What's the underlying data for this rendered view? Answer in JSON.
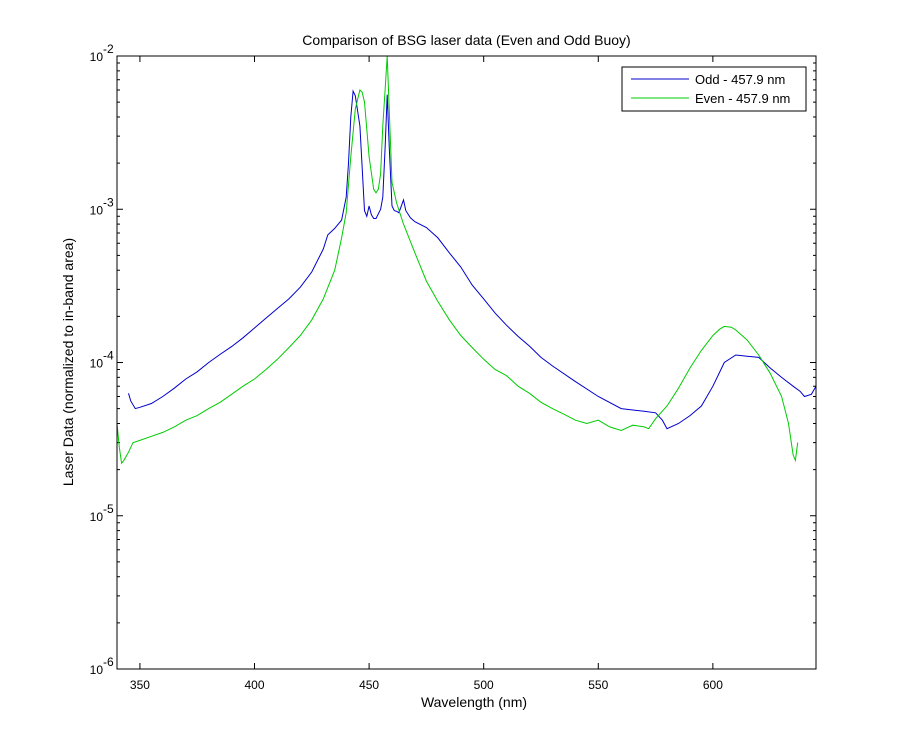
{
  "chart_data": {
    "type": "line",
    "title": "Comparison of BSG laser data (Even and Odd Buoy)",
    "xlabel": "Wavelength (nm)",
    "ylabel": "Laser Data (normalized to in-band area)",
    "xlim": [
      340,
      645
    ],
    "ylim": [
      1e-06,
      0.01
    ],
    "yscale": "log",
    "grid": false,
    "legend_position": "top-right",
    "x_ticks": [
      350,
      400,
      450,
      500,
      550,
      600
    ],
    "y_ticks": [
      {
        "value": 1e-06,
        "base": "10",
        "exp": "-6"
      },
      {
        "value": 1e-05,
        "base": "10",
        "exp": "-5"
      },
      {
        "value": 0.0001,
        "base": "10",
        "exp": "-4"
      },
      {
        "value": 0.001,
        "base": "10",
        "exp": "-3"
      },
      {
        "value": 0.01,
        "base": "10",
        "exp": "-2"
      }
    ],
    "series": [
      {
        "name": "Odd - 457.9 nm",
        "color": "#0000cc",
        "x": [
          345,
          346,
          348,
          350,
          355,
          360,
          365,
          370,
          375,
          380,
          385,
          390,
          395,
          400,
          405,
          410,
          415,
          420,
          425,
          430,
          432,
          435,
          438,
          440,
          441,
          442,
          443,
          444,
          446,
          448,
          449,
          450,
          451,
          452,
          453,
          455,
          456,
          457,
          457.9,
          458.8,
          460,
          461,
          462,
          463,
          465,
          466,
          468,
          470,
          475,
          480,
          485,
          490,
          495,
          500,
          505,
          510,
          515,
          520,
          525,
          530,
          540,
          550,
          560,
          570,
          575,
          578,
          580,
          585,
          590,
          595,
          600,
          605,
          610,
          615,
          620,
          625,
          630,
          635,
          638,
          640,
          643,
          645
        ],
        "y": [
          6.3e-05,
          5.6e-05,
          5e-05,
          5.1e-05,
          5.4e-05,
          6e-05,
          6.8e-05,
          7.8e-05,
          8.7e-05,
          0.0001,
          0.000113,
          0.000127,
          0.000145,
          0.000168,
          0.000195,
          0.000225,
          0.00026,
          0.00031,
          0.00039,
          0.00055,
          0.00068,
          0.00075,
          0.00085,
          0.0012,
          0.002,
          0.004,
          0.0059,
          0.0055,
          0.0035,
          0.00098,
          0.0009,
          0.00105,
          0.00092,
          0.00087,
          0.00087,
          0.001,
          0.0012,
          0.0025,
          0.0056,
          0.0025,
          0.00105,
          0.00098,
          0.00097,
          0.00095,
          0.00115,
          0.00098,
          0.00088,
          0.00083,
          0.00076,
          0.00065,
          0.00052,
          0.00042,
          0.00032,
          0.00026,
          0.00021,
          0.000175,
          0.000148,
          0.000128,
          0.000108,
          9.5e-05,
          7.5e-05,
          6e-05,
          5e-05,
          4.8e-05,
          4.7e-05,
          4.2e-05,
          3.7e-05,
          4e-05,
          4.5e-05,
          5.2e-05,
          7e-05,
          0.0001,
          0.000112,
          0.00011,
          0.000108,
          9.2e-05,
          8e-05,
          7e-05,
          6.5e-05,
          6e-05,
          6.2e-05,
          7e-05
        ]
      },
      {
        "name": "Even - 457.9 nm",
        "color": "#00cc00",
        "x": [
          340,
          341,
          342,
          343,
          345,
          347,
          350,
          355,
          360,
          365,
          370,
          375,
          380,
          385,
          390,
          395,
          400,
          405,
          410,
          415,
          420,
          425,
          430,
          435,
          438,
          440,
          442,
          444,
          446,
          447,
          448,
          450,
          452,
          453,
          454,
          455,
          456,
          457,
          457.9,
          459,
          460,
          462,
          465,
          470,
          475,
          480,
          485,
          490,
          495,
          500,
          505,
          510,
          515,
          520,
          525,
          530,
          535,
          540,
          545,
          550,
          555,
          560,
          565,
          570,
          572,
          575,
          580,
          585,
          590,
          595,
          600,
          603,
          605,
          608,
          610,
          615,
          620,
          625,
          630,
          633,
          635,
          636,
          637
        ],
        "y": [
          4e-05,
          2.8e-05,
          2.2e-05,
          2.3e-05,
          2.6e-05,
          3e-05,
          3.1e-05,
          3.3e-05,
          3.5e-05,
          3.8e-05,
          4.2e-05,
          4.5e-05,
          5e-05,
          5.5e-05,
          6.2e-05,
          7e-05,
          7.8e-05,
          9e-05,
          0.000105,
          0.000125,
          0.00015,
          0.00019,
          0.00026,
          0.0004,
          0.00065,
          0.00095,
          0.0022,
          0.0045,
          0.006,
          0.0058,
          0.005,
          0.0022,
          0.00135,
          0.00128,
          0.00135,
          0.0017,
          0.0035,
          0.006,
          0.01,
          0.0037,
          0.0015,
          0.0011,
          0.0008,
          0.00052,
          0.00034,
          0.00025,
          0.00019,
          0.00015,
          0.000125,
          0.000105,
          9e-05,
          8.2e-05,
          7e-05,
          6.3e-05,
          5.5e-05,
          5e-05,
          4.6e-05,
          4.2e-05,
          4e-05,
          4.2e-05,
          3.8e-05,
          3.6e-05,
          3.9e-05,
          3.8e-05,
          3.7e-05,
          4.3e-05,
          5.2e-05,
          6.8e-05,
          9.2e-05,
          0.00012,
          0.00015,
          0.000165,
          0.000172,
          0.00017,
          0.000163,
          0.00014,
          0.000112,
          8.5e-05,
          6e-05,
          4e-05,
          2.5e-05,
          2.3e-05,
          3e-05
        ]
      }
    ]
  }
}
